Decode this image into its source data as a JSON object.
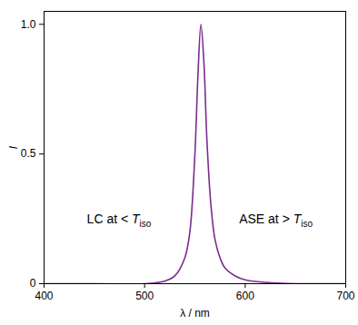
{
  "chart_data": {
    "type": "line",
    "x_label": "λ / nm",
    "y_label": "I",
    "x": [
      400,
      450,
      500,
      520,
      530,
      540,
      545,
      550,
      553,
      556,
      559,
      562,
      566,
      570,
      575,
      580,
      590,
      600,
      620,
      650,
      700
    ],
    "series": [
      {
        "name": "ASE",
        "color": "#7b2d8e",
        "values": [
          0,
          0,
          0,
          0.01,
          0.03,
          0.1,
          0.2,
          0.5,
          0.8,
          1.0,
          0.85,
          0.55,
          0.3,
          0.17,
          0.1,
          0.06,
          0.03,
          0.015,
          0.005,
          0,
          0
        ]
      }
    ],
    "xlim": [
      400,
      700
    ],
    "ylim": [
      0,
      1.05
    ],
    "xticks": [
      400,
      500,
      600,
      700
    ],
    "yticks": [
      0,
      {
        "value": 0.5,
        "label": "0.5"
      },
      {
        "value": 1,
        "label": "1.0"
      }
    ],
    "annotations": [
      {
        "text": "LC at < ",
        "italic": "T",
        "subscript": "iso"
      },
      {
        "text": "ASE at > ",
        "italic": "T",
        "subscript": "iso"
      }
    ]
  }
}
